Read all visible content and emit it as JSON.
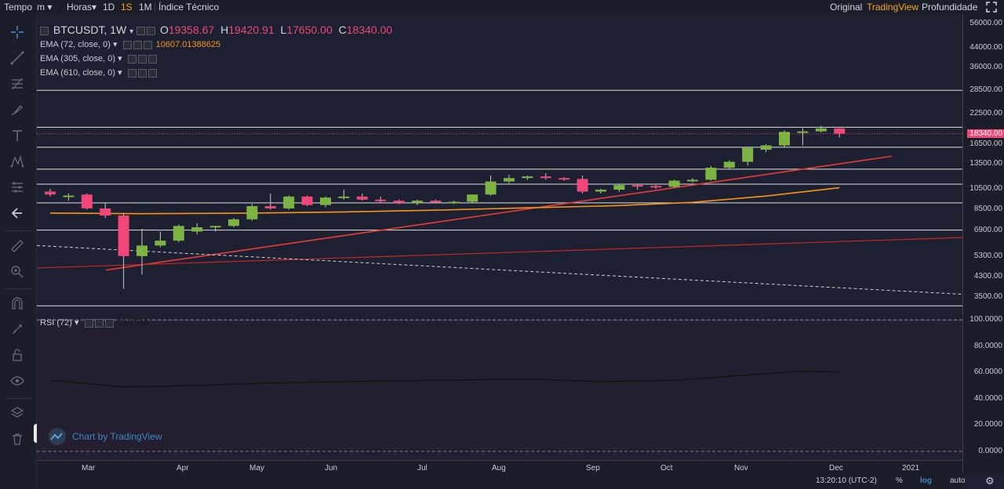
{
  "toolbar": {
    "items": [
      {
        "label": "Tempo",
        "key": "tempo"
      },
      {
        "label": "m",
        "key": "minutes",
        "dropdown": true
      },
      {
        "label": "Horas",
        "key": "hours",
        "dropdown": true
      },
      {
        "label": "1D",
        "key": "1d"
      },
      {
        "label": "1S",
        "key": "1s",
        "active": true
      },
      {
        "label": "1M",
        "key": "1m"
      },
      {
        "label": "Índice Técnico",
        "key": "indicators"
      }
    ],
    "right_items": [
      {
        "label": "Original",
        "key": "original"
      },
      {
        "label": "TradingView",
        "key": "tradingview",
        "active": true
      },
      {
        "label": "Profundidade",
        "key": "depth"
      }
    ]
  },
  "left_tools": [
    "crosshair-icon",
    "trendline-icon",
    "fib-icon",
    "brush-icon",
    "text-icon",
    "pattern-icon",
    "measure-icon",
    "back-arrow-icon",
    "ruler-icon",
    "zoom-icon",
    "magnet-icon",
    "lock-drawings-icon",
    "lock-icon",
    "eye-icon",
    "layers-icon",
    "trash-icon"
  ],
  "legend": {
    "symbol": "BTCUSDT, 1W",
    "open_label": "O",
    "open": "19358.67",
    "high_label": "H",
    "high": "19420.91",
    "low_label": "L",
    "low": "17650.00",
    "close_label": "C",
    "close": "18340.00",
    "ema1": "EMA (72, close, 0)",
    "ema1_value": "10607.01388625",
    "ema2": "EMA (305, close, 0)",
    "ema3": "EMA (610, close, 0)",
    "rsi": "RSI (72)",
    "rsi_value": "60.1546"
  },
  "price_axis": [
    "56000.00",
    "44000.00",
    "36000.00",
    "28500.00",
    "22500.00",
    "16500.00",
    "13500.00",
    "10500.00",
    "8500.00",
    "6900.00",
    "5300.00",
    "4300.00",
    "3500.00"
  ],
  "current_price": "18340.00",
  "rsi_axis": [
    "100.0000",
    "80.0000",
    "60.0000",
    "40.0000",
    "20.0000",
    "0.0000"
  ],
  "time_axis": [
    "Mar",
    "Apr",
    "May",
    "Jun",
    "Jul",
    "Aug",
    "Sep",
    "Oct",
    "Nov",
    "Dec",
    "2021"
  ],
  "bottom": {
    "time": "13:20:10 (UTC-2)",
    "percent": "%",
    "log": "log",
    "auto": "auto"
  },
  "watermark": "Chart by TradingView",
  "colors": {
    "up": "#7cb342",
    "down": "#f0467a",
    "ema_orange": "#f7931a",
    "trend_red": "#e83b3b",
    "accent": "#f5a623"
  },
  "chart_data": {
    "type": "candlestick",
    "symbol": "BTCUSDT",
    "interval": "1W",
    "scale": "log",
    "candles": [
      {
        "x": "Feb 10",
        "o": 10200,
        "h": 10500,
        "l": 9700,
        "c": 9900
      },
      {
        "x": "Feb 17",
        "o": 9700,
        "h": 10000,
        "l": 9300,
        "c": 9800
      },
      {
        "x": "Feb 24",
        "o": 9900,
        "h": 10000,
        "l": 8500,
        "c": 8600
      },
      {
        "x": "Mar 02",
        "o": 8600,
        "h": 9100,
        "l": 7800,
        "c": 8000
      },
      {
        "x": "Mar 09",
        "o": 8000,
        "h": 8200,
        "l": 3800,
        "c": 5300
      },
      {
        "x": "Mar 16",
        "o": 5300,
        "h": 7000,
        "l": 4400,
        "c": 5900
      },
      {
        "x": "Mar 23",
        "o": 5900,
        "h": 6800,
        "l": 5800,
        "c": 6200
      },
      {
        "x": "Mar 30",
        "o": 6200,
        "h": 7300,
        "l": 6100,
        "c": 7200
      },
      {
        "x": "Apr 06",
        "o": 6800,
        "h": 7400,
        "l": 6600,
        "c": 7100
      },
      {
        "x": "Apr 13",
        "o": 7100,
        "h": 7200,
        "l": 6800,
        "c": 7200
      },
      {
        "x": "Apr 20",
        "o": 7200,
        "h": 7800,
        "l": 7100,
        "c": 7700
      },
      {
        "x": "Apr 27",
        "o": 7700,
        "h": 9000,
        "l": 7600,
        "c": 8800
      },
      {
        "x": "May 04",
        "o": 8800,
        "h": 10000,
        "l": 8500,
        "c": 8600
      },
      {
        "x": "May 11",
        "o": 8600,
        "h": 9800,
        "l": 8500,
        "c": 9700
      },
      {
        "x": "May 18",
        "o": 9700,
        "h": 9800,
        "l": 8800,
        "c": 8900
      },
      {
        "x": "May 25",
        "o": 8900,
        "h": 9700,
        "l": 8700,
        "c": 9600
      },
      {
        "x": "Jun 01",
        "o": 9600,
        "h": 10400,
        "l": 9400,
        "c": 9700
      },
      {
        "x": "Jun 08",
        "o": 9700,
        "h": 10000,
        "l": 9300,
        "c": 9400
      },
      {
        "x": "Jun 15",
        "o": 9400,
        "h": 9700,
        "l": 9100,
        "c": 9300
      },
      {
        "x": "Jun 22",
        "o": 9300,
        "h": 9400,
        "l": 9000,
        "c": 9100
      },
      {
        "x": "Jun 29",
        "o": 9100,
        "h": 9400,
        "l": 8900,
        "c": 9300
      },
      {
        "x": "Jul 06",
        "o": 9300,
        "h": 9400,
        "l": 9100,
        "c": 9200
      },
      {
        "x": "Jul 13",
        "o": 9200,
        "h": 9300,
        "l": 9000,
        "c": 9200
      },
      {
        "x": "Jul 20",
        "o": 9200,
        "h": 9900,
        "l": 9100,
        "c": 9900
      },
      {
        "x": "Jul 27",
        "o": 9900,
        "h": 12000,
        "l": 9800,
        "c": 11300
      },
      {
        "x": "Aug 03",
        "o": 11300,
        "h": 12100,
        "l": 11100,
        "c": 11700
      },
      {
        "x": "Aug 10",
        "o": 11700,
        "h": 12000,
        "l": 11500,
        "c": 11900
      },
      {
        "x": "Aug 17",
        "o": 11900,
        "h": 12300,
        "l": 11500,
        "c": 11700
      },
      {
        "x": "Aug 24",
        "o": 11700,
        "h": 11800,
        "l": 11400,
        "c": 11600
      },
      {
        "x": "Aug 31",
        "o": 11600,
        "h": 12000,
        "l": 10000,
        "c": 10200
      },
      {
        "x": "Sep 07",
        "o": 10200,
        "h": 10500,
        "l": 10000,
        "c": 10400
      },
      {
        "x": "Sep 14",
        "o": 10400,
        "h": 11000,
        "l": 10200,
        "c": 10900
      },
      {
        "x": "Sep 21",
        "o": 10900,
        "h": 10950,
        "l": 10400,
        "c": 10800
      },
      {
        "x": "Sep 28",
        "o": 10800,
        "h": 10900,
        "l": 10500,
        "c": 10700
      },
      {
        "x": "Oct 05",
        "o": 10700,
        "h": 11500,
        "l": 10600,
        "c": 11400
      },
      {
        "x": "Oct 12",
        "o": 11400,
        "h": 11700,
        "l": 11200,
        "c": 11500
      },
      {
        "x": "Oct 19",
        "o": 11500,
        "h": 13200,
        "l": 11400,
        "c": 13000
      },
      {
        "x": "Oct 26",
        "o": 13000,
        "h": 14000,
        "l": 12800,
        "c": 13800
      },
      {
        "x": "Nov 02",
        "o": 13800,
        "h": 15900,
        "l": 13300,
        "c": 15900
      },
      {
        "x": "Nov 09",
        "o": 15600,
        "h": 16500,
        "l": 15200,
        "c": 16300
      },
      {
        "x": "Nov 16",
        "o": 16300,
        "h": 19000,
        "l": 16000,
        "c": 18700
      },
      {
        "x": "Nov 23",
        "o": 18700,
        "h": 19400,
        "l": 16300,
        "c": 18800
      },
      {
        "x": "Nov 30",
        "o": 18800,
        "h": 19900,
        "l": 18600,
        "c": 19360
      },
      {
        "x": "Dec 07",
        "o": 19358.67,
        "h": 19420.91,
        "l": 17650,
        "c": 18340
      }
    ],
    "ema": [
      {
        "x": "Feb 10",
        "y": 8200
      },
      {
        "x": "Mar 16",
        "y": 8150
      },
      {
        "x": "Apr 27",
        "y": 8200
      },
      {
        "x": "Jun 01",
        "y": 8300
      },
      {
        "x": "Jul 06",
        "y": 8450
      },
      {
        "x": "Aug 10",
        "y": 8650
      },
      {
        "x": "Sep 14",
        "y": 8850
      },
      {
        "x": "Oct 12",
        "y": 9150
      },
      {
        "x": "Nov 09",
        "y": 9750
      },
      {
        "x": "Dec 07",
        "y": 10607
      }
    ],
    "horizontal_levels": [
      28500,
      19600,
      16000,
      12800,
      11000,
      9100,
      6900,
      3200
    ],
    "rsi": [
      {
        "x": "Feb 10",
        "y": 54
      },
      {
        "x": "Mar 09",
        "y": 49
      },
      {
        "x": "Apr 06",
        "y": 50
      },
      {
        "x": "May 04",
        "y": 52
      },
      {
        "x": "Jun 01",
        "y": 53
      },
      {
        "x": "Jul 06",
        "y": 54
      },
      {
        "x": "Aug 10",
        "y": 55
      },
      {
        "x": "Sep 07",
        "y": 53
      },
      {
        "x": "Oct 05",
        "y": 54
      },
      {
        "x": "Nov 02",
        "y": 58
      },
      {
        "x": "Nov 23",
        "y": 61
      },
      {
        "x": "Dec 07",
        "y": 60.1546
      }
    ],
    "rsi_range": [
      0,
      100
    ]
  }
}
